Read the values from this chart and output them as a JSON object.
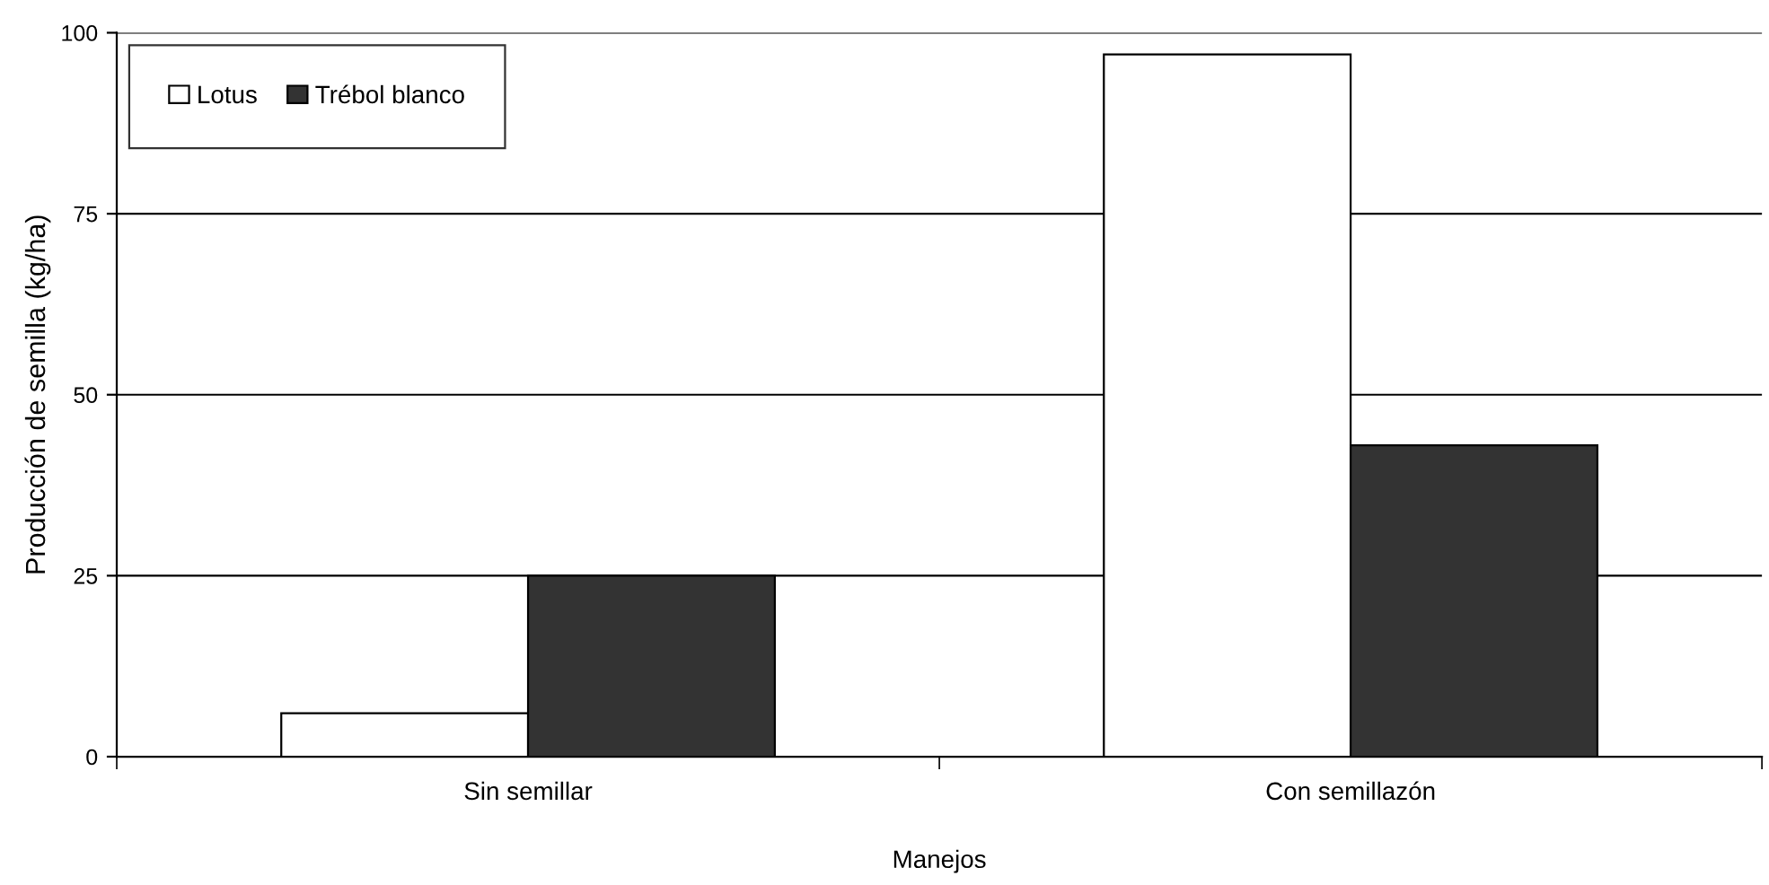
{
  "chart_data": {
    "type": "bar",
    "xlabel": "Manejos",
    "ylabel": "Producción de semilla (kg/ha)",
    "categories": [
      "Sin semillar",
      "Con semillazón"
    ],
    "series": [
      {
        "name": "Lotus",
        "color": "#ffffff",
        "values": [
          6,
          97
        ]
      },
      {
        "name": "Trébol blanco",
        "color": "#333333",
        "values": [
          25,
          43
        ]
      }
    ],
    "ylim": [
      0,
      100
    ],
    "yticks": [
      0,
      25,
      50,
      75,
      100
    ],
    "grid": "y",
    "legend": "top left"
  }
}
